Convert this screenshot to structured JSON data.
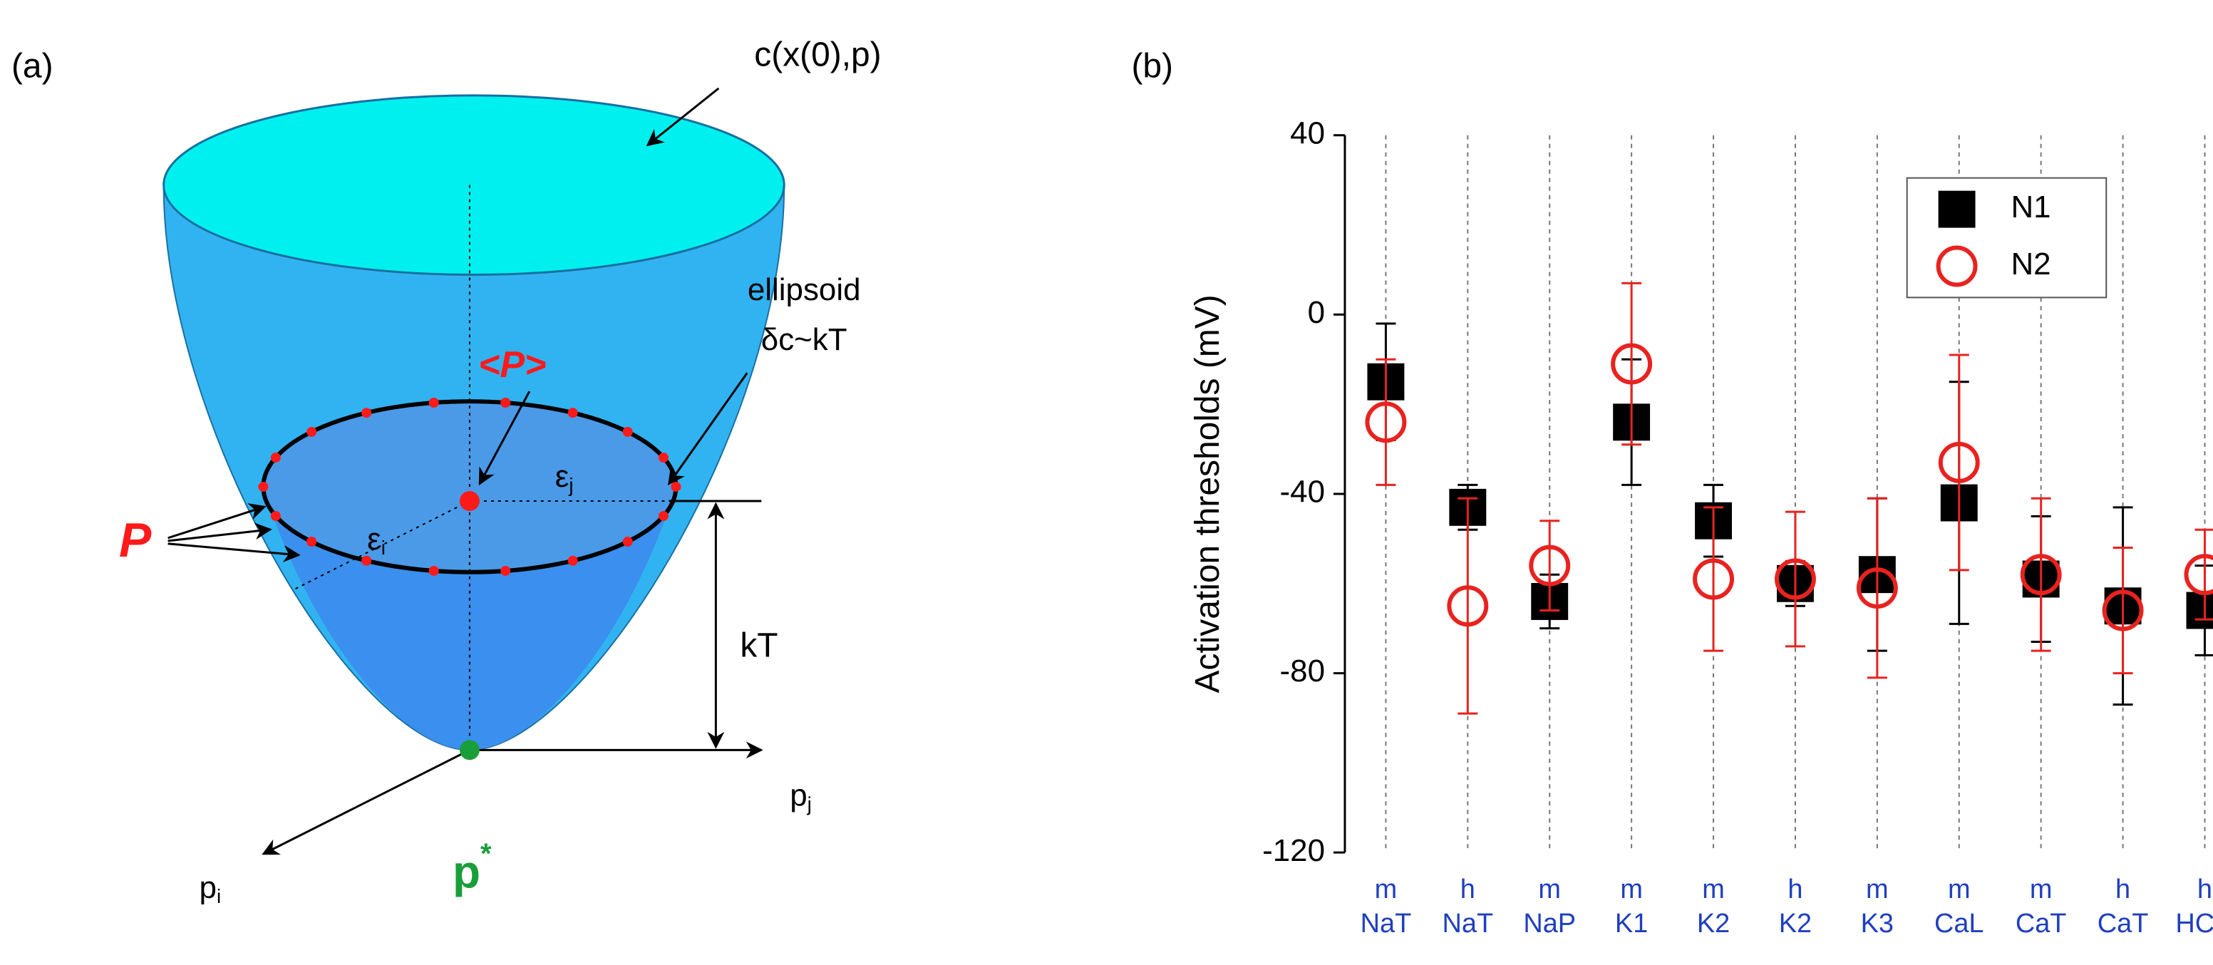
{
  "panel_a": {
    "panel_label": "(a)",
    "surface_label": "c(x(0),p)",
    "mean_label": "<P>",
    "ellipsoid_label": "ellipsoid",
    "ellipsoid_condition": "δc~kT",
    "points_label": "P",
    "epsilon_i": {
      "base": "ε",
      "sub": "i"
    },
    "epsilon_j": {
      "base": "ε",
      "sub": "j"
    },
    "energy_label": "kT",
    "axis_j": {
      "base": "p",
      "sub": "j"
    },
    "axis_i": {
      "base": "p",
      "sub": "i"
    },
    "minimum": {
      "base": "p",
      "sup": "*"
    }
  },
  "chart_data": {
    "type": "scatter",
    "panel_label": "(b)",
    "y_label": "Activation thresholds  (mV)",
    "categories": [
      [
        "m",
        "NaT"
      ],
      [
        "h",
        "NaT"
      ],
      [
        "m",
        "NaP"
      ],
      [
        "m",
        "K1"
      ],
      [
        "m",
        "K2"
      ],
      [
        "h",
        "K2"
      ],
      [
        "m",
        "K3"
      ],
      [
        "m",
        "CaL"
      ],
      [
        "m",
        "CaT"
      ],
      [
        "h",
        "CaT"
      ],
      [
        "h",
        "HCN"
      ]
    ],
    "ylim": [
      -120,
      40
    ],
    "yticks": [
      -120,
      -80,
      -40,
      0,
      40
    ],
    "grid": true,
    "legend": "upper right",
    "series": [
      {
        "name": "N1",
        "color": "#000000",
        "marker": "square",
        "values": [
          -15,
          -43,
          -64,
          -24,
          -46,
          -60,
          -58,
          -42,
          -59,
          -65,
          -66
        ],
        "errors": [
          13,
          5,
          6,
          14,
          8,
          5,
          17,
          27,
          14,
          22,
          10
        ]
      },
      {
        "name": "N2",
        "color": "#e8231f",
        "marker": "circle",
        "values": [
          -24,
          -65,
          -56,
          -11,
          -59,
          -59,
          -61,
          -33,
          -58,
          -66,
          -58
        ],
        "errors": [
          14,
          24,
          10,
          18,
          16,
          15,
          20,
          24,
          17,
          14,
          10
        ]
      }
    ]
  }
}
